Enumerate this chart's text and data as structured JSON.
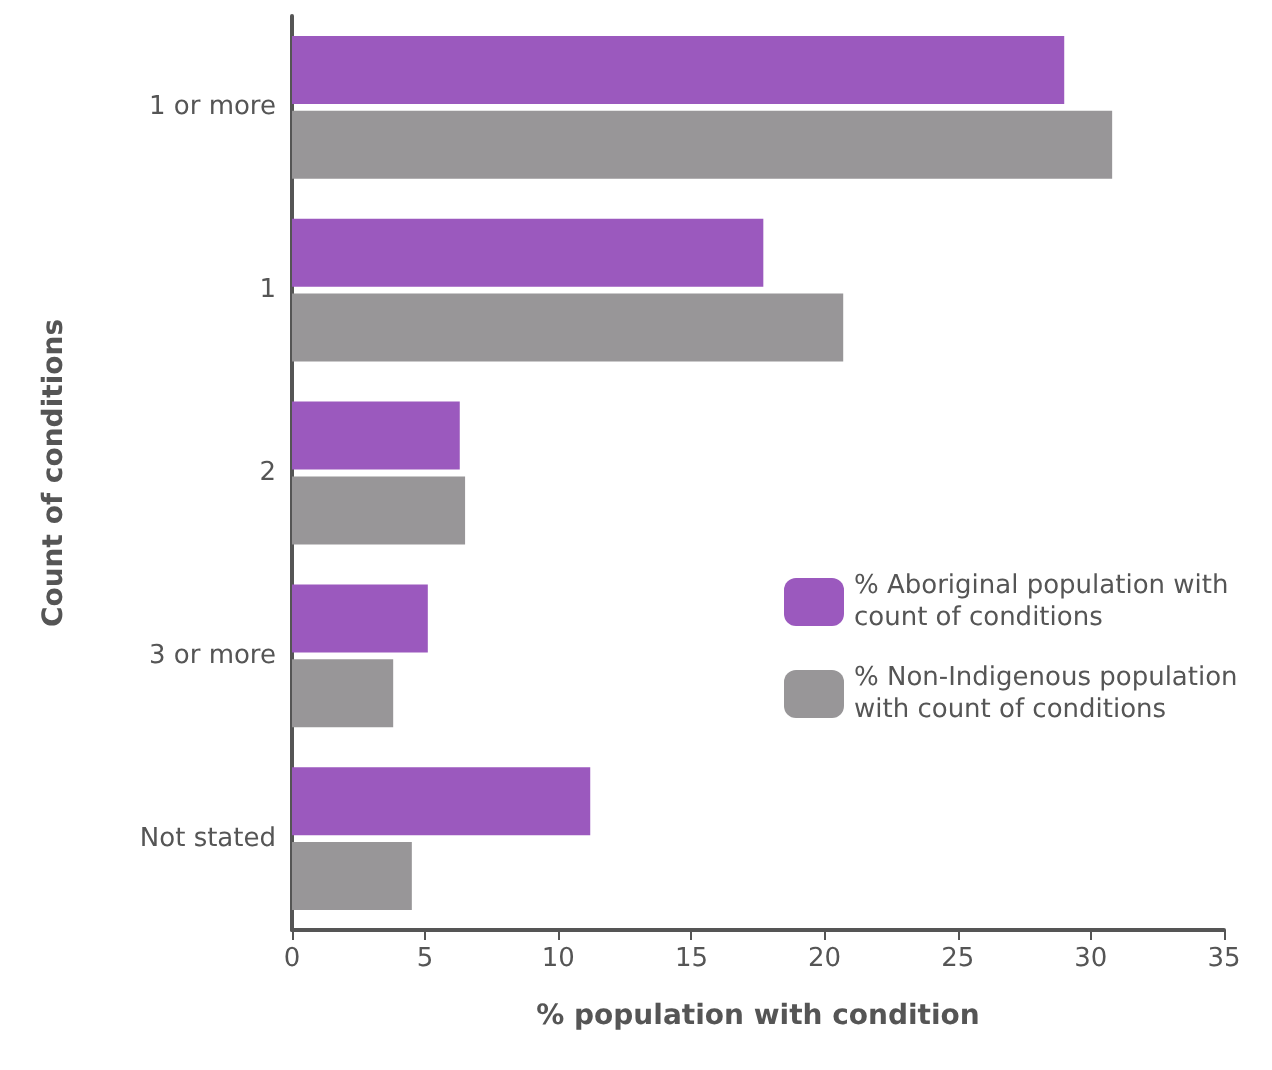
{
  "chart_data": {
    "type": "bar",
    "orientation": "horizontal",
    "xlabel": "% population with condition",
    "ylabel": "Count of conditions",
    "categories": [
      "1 or more",
      "1",
      "2",
      "3 or more",
      "Not stated"
    ],
    "series": [
      {
        "name": "% Aboriginal population with count of conditions",
        "color": "#9b59be",
        "values": [
          29.0,
          17.7,
          6.3,
          5.1,
          11.2
        ]
      },
      {
        "name": "% Non-Indigenous population with count of conditions",
        "color": "#989698",
        "values": [
          30.8,
          20.7,
          6.5,
          3.8,
          4.5
        ]
      }
    ],
    "xlim": [
      0,
      35
    ],
    "xticks": [
      0,
      5,
      10,
      15,
      20,
      25,
      30,
      35
    ],
    "grid": false,
    "legend": "right"
  }
}
